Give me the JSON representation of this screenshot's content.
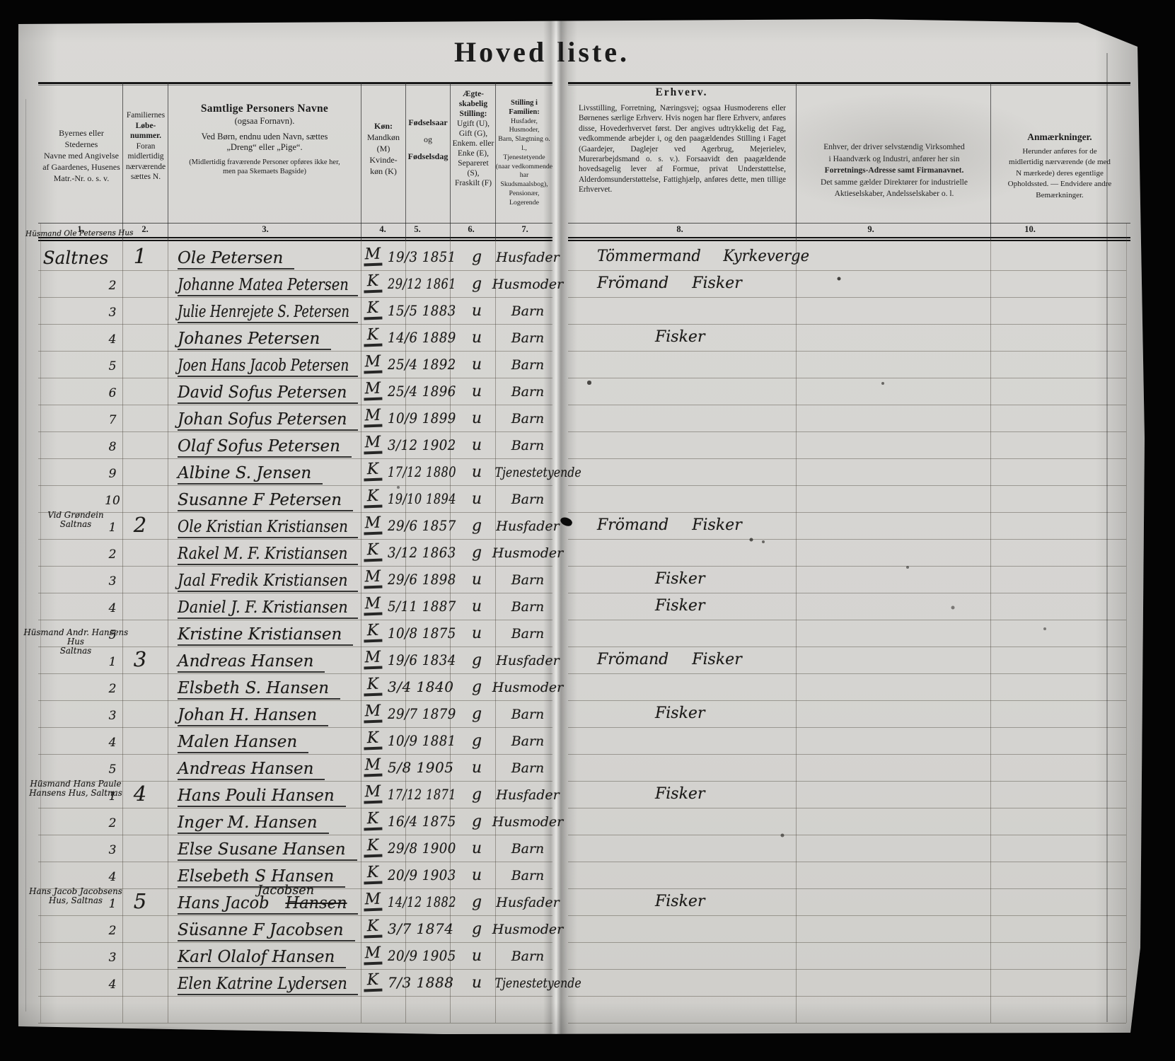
{
  "title": "Hoved liste.",
  "header_note": "Hüsmand Ole Petersens Hus",
  "columns": {
    "numbers": [
      "1.",
      "2.",
      "3.",
      "4.",
      "5.",
      "6.",
      "7.",
      "8.",
      "9.",
      "10."
    ],
    "col1": {
      "lines": [
        "Byernes eller Stedernes",
        "Navne med Angivelse",
        "af Gaardenes, Husenes",
        "Matr.-Nr. o. s. v."
      ]
    },
    "col2": {
      "line1": "Familiernes",
      "bold": [
        "Løbe-",
        "nummer."
      ],
      "rest": [
        "Foran",
        "midlertidig",
        "nærværende",
        "sættes N."
      ]
    },
    "col3": {
      "title": "Samtlige Personers Navne",
      "sub": "(ogsaa Fornavn).",
      "line1": "Ved Børn, endnu uden Navn, sættes",
      "line2": "„Dreng“ eller „Pige“.",
      "notes": [
        "(Midlertidig fraværende Personer opføres ikke her,",
        "men paa Skemaets Bagside)"
      ]
    },
    "col4": {
      "bold": "Køn:",
      "lines": [
        "Mandkøn",
        "(M)",
        "Kvinde-",
        "køn (K)"
      ]
    },
    "col5": {
      "l1": "Fødselsaar",
      "l2": "og",
      "l3": "Fødselsdag"
    },
    "col6": {
      "bold": [
        "Ægte-",
        "skabelig",
        "Stilling:"
      ],
      "lines": [
        "Ugift (U),",
        "Gift (G),",
        "Enkem. eller",
        "Enke (E),",
        "Separeret",
        "(S),",
        "Fraskilt (F)"
      ]
    },
    "col7": {
      "bold": "Stilling i Familien:",
      "lines": [
        "Husfader, Husmoder,",
        "Barn, Slægtning o. l.,",
        "Tjenestetyende",
        "(naar vedkommende",
        "har Skudsmaalsbog),",
        "Pensionær, Logerende"
      ]
    },
    "col8": {
      "title": "Erhverv.",
      "body": "Livsstilling, Forretning, Næringsvej; ogsaa Husmoderens eller Børnenes særlige Erhverv. Hvis nogen har flere Erhverv, anføres disse, Hovederhvervet først. Der angives udtrykkelig det Fag, vedkommende arbejder i, og den paagældendes Stilling i Faget (Gaardejer, Daglejer ved Agerbrug, Mejerielev, Murerarbejdsmand o. s. v.). Forsaavidt den paagældende hovedsagelig lever af Formue, privat Understøttelse, Alderdomsunderstøttelse, Fattighjælp, anføres dette, men tillige Erhvervet."
    },
    "col9": {
      "lines": [
        "Enhver, der driver selvstændig Virksomhed",
        "i Haandværk og Industri, anfører her sin"
      ],
      "bold_line": "Forretnings-Adresse samt Firmanavnet.",
      "lines2": [
        "Det samme gælder Direktører for industrielle",
        "Aktieselskaber, Andelsselskaber o. l."
      ]
    },
    "col10": {
      "title": "Anmærkninger.",
      "lines": [
        "Herunder anføres for de",
        "midlertidig nærværende (de med",
        "N mærkede) deres egentlige",
        "Opholdssted. — Endvidere andre",
        "Bemærkninger."
      ]
    }
  },
  "rows": [
    {
      "place_lines": [
        "Saltnes"
      ],
      "place_style": "large",
      "person_no": "",
      "family_no": "1",
      "name": "Ole Petersen",
      "sex": "M",
      "date": "19/3 1851",
      "marital": "g",
      "position": "Husfader",
      "occupation": "Tömmermand Kyrkeverge",
      "occ_style": "head"
    },
    {
      "person_no": "2",
      "name": "Johanne Matea Petersen",
      "sex": "K",
      "date": "29/12 1861",
      "marital": "g",
      "position": "Husmoder",
      "occupation": "Frömand Fisker",
      "occ_style": "head"
    },
    {
      "person_no": "3",
      "name": "Julie Henrejete S. Petersen",
      "sex": "K",
      "date": "15/5 1883",
      "marital": "u",
      "position": "Barn"
    },
    {
      "person_no": "4",
      "name": "Johanes Petersen",
      "sex": "K",
      "date": "14/6 1889",
      "marital": "u",
      "position": "Barn",
      "occupation": "Fisker",
      "occ_style": "child"
    },
    {
      "person_no": "5",
      "name": "Joen Hans Jacob Petersen",
      "sex": "M",
      "date": "25/4 1892",
      "marital": "u",
      "position": "Barn"
    },
    {
      "person_no": "6",
      "name": "David Sofus Petersen",
      "sex": "M",
      "date": "25/4 1896",
      "marital": "u",
      "position": "Barn"
    },
    {
      "person_no": "7",
      "name": "Johan Sofus Petersen",
      "sex": "M",
      "date": "10/9 1899",
      "marital": "u",
      "position": "Barn"
    },
    {
      "person_no": "8",
      "name": "Olaf Sofus Petersen",
      "sex": "M",
      "date": "3/12 1902",
      "marital": "u",
      "position": "Barn"
    },
    {
      "person_no": "9",
      "name": "Albine S. Jensen",
      "sex": "K",
      "date": "17/12 1880",
      "marital": "u",
      "position": "Tjenestetyende"
    },
    {
      "person_no": "10",
      "name": "Susanne F Petersen",
      "sex": "K",
      "date": "19/10 1894",
      "marital": "u",
      "position": "Barn"
    },
    {
      "place_lines": [
        "Vid Grøndein",
        "Saltnas"
      ],
      "place_style": "small",
      "person_no": "1",
      "family_no": "2",
      "name": "Ole Kristian Kristiansen",
      "sex": "M",
      "date": "29/6 1857",
      "marital": "g",
      "position": "Husfader",
      "occupation": "Frömand Fisker",
      "occ_style": "head"
    },
    {
      "person_no": "2",
      "name": "Rakel M. F. Kristiansen",
      "sex": "K",
      "date": "3/12 1863",
      "marital": "g",
      "position": "Husmoder"
    },
    {
      "person_no": "3",
      "name": "Jaal Fredik Kristiansen",
      "sex": "M",
      "date": "29/6 1898",
      "marital": "u",
      "position": "Barn",
      "occupation": "Fisker",
      "occ_style": "child"
    },
    {
      "person_no": "4",
      "name": "Daniel J. F. Kristiansen",
      "sex": "M",
      "date": "5/11 1887",
      "marital": "u",
      "position": "Barn",
      "occupation": "Fisker",
      "occ_style": "child"
    },
    {
      "person_no": "5",
      "name": "Kristine Kristiansen",
      "sex": "K",
      "date": "10/8 1875",
      "marital": "u",
      "position": "Barn"
    },
    {
      "place_lines": [
        "Hüsmand Andr. Hansens",
        "Hus",
        "Saltnas"
      ],
      "place_style": "small",
      "person_no": "1",
      "family_no": "3",
      "name": "Andreas Hansen",
      "sex": "M",
      "date": "19/6 1834",
      "marital": "g",
      "position": "Husfader",
      "occupation": "Frömand Fisker",
      "occ_style": "head"
    },
    {
      "person_no": "2",
      "name": "Elsbeth S. Hansen",
      "sex": "K",
      "date": "3/4 1840",
      "marital": "g",
      "position": "Husmoder"
    },
    {
      "person_no": "3",
      "name": "Johan H. Hansen",
      "sex": "M",
      "date": "29/7 1879",
      "marital": "g",
      "position": "Barn",
      "occupation": "Fisker",
      "occ_style": "child"
    },
    {
      "person_no": "4",
      "name": "Malen Hansen",
      "sex": "K",
      "date": "10/9 1881",
      "marital": "g",
      "position": "Barn"
    },
    {
      "person_no": "5",
      "name": "Andreas Hansen",
      "sex": "M",
      "date": "5/8 1905",
      "marital": "u",
      "position": "Barn"
    },
    {
      "place_lines": [
        "Hüsmand Hans Paule",
        "Hansens Hus, Saltnas"
      ],
      "place_style": "small",
      "person_no": "1",
      "family_no": "4",
      "name": "Hans Pouli Hansen",
      "sex": "M",
      "date": "17/12 1871",
      "marital": "g",
      "position": "Husfader",
      "occupation": "Fisker",
      "occ_style": "child"
    },
    {
      "person_no": "2",
      "name": "Inger M. Hansen",
      "sex": "K",
      "date": "16/4 1875",
      "marital": "g",
      "position": "Husmoder"
    },
    {
      "person_no": "3",
      "name": "Else Susane Hansen",
      "sex": "K",
      "date": "29/8 1900",
      "marital": "u",
      "position": "Barn"
    },
    {
      "person_no": "4",
      "name": "Elsebeth S Hansen",
      "sex": "K",
      "date": "20/9 1903",
      "marital": "u",
      "position": "Barn"
    },
    {
      "place_lines": [
        "Hans Jacob Jacobsens",
        "Hus, Saltnas"
      ],
      "place_style": "small",
      "person_no": "1",
      "family_no": "5",
      "name": "Hans Jacob ",
      "name_struck": "Hansen",
      "name_above": "Jacobsen",
      "sex": "M",
      "date": "14/12 1882",
      "marital": "g",
      "position": "Husfader",
      "occupation": "Fisker",
      "occ_style": "child"
    },
    {
      "person_no": "2",
      "name": "Süsanne F Jacobsen",
      "sex": "K",
      "date": "3/7 1874",
      "marital": "g",
      "position": "Husmoder"
    },
    {
      "person_no": "3",
      "name": "Karl Olalof Hansen",
      "sex": "M",
      "date": "20/9 1905",
      "marital": "u",
      "position": "Barn"
    },
    {
      "person_no": "4",
      "name": "Elen Katrine Lydersen",
      "sex": "K",
      "date": "7/3 1888",
      "marital": "u",
      "position": "Tjenestetyende"
    }
  ]
}
